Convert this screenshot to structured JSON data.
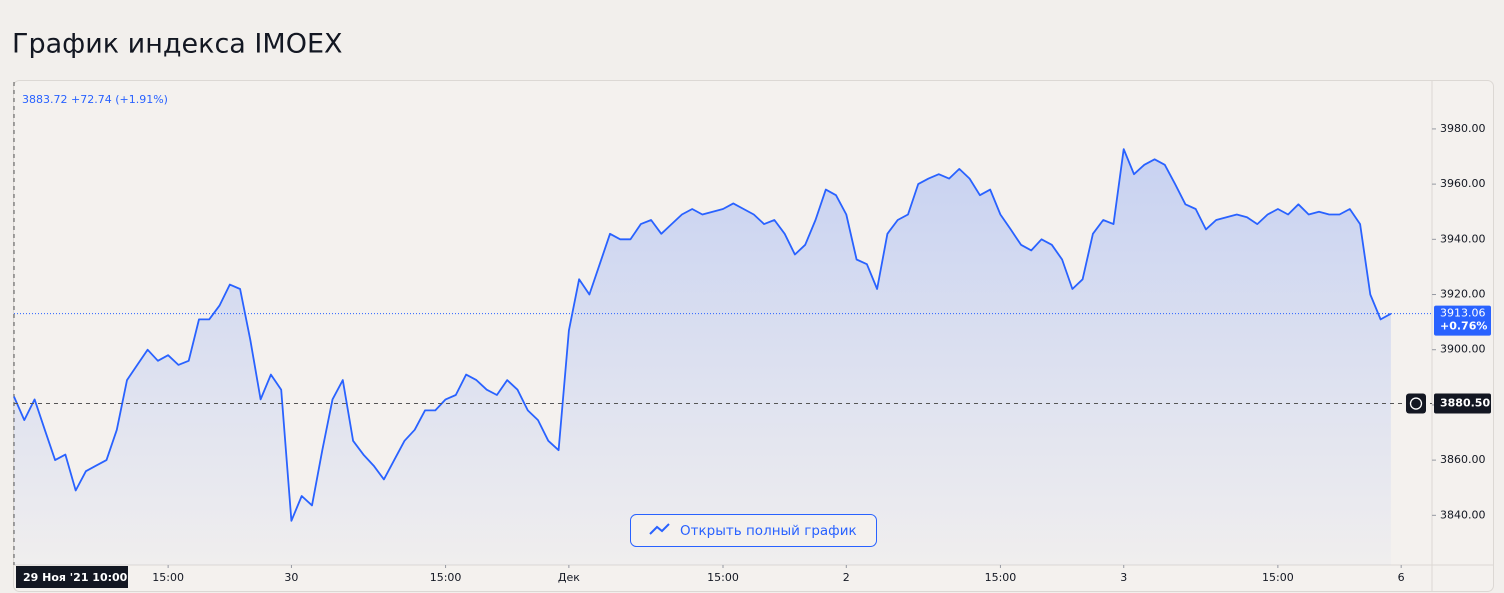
{
  "title": "График индекса IMOEX",
  "chart_data": {
    "type": "line",
    "legend_text": "3883.72  +72.74 (+1.91%)",
    "color": "#2962ff",
    "x": [
      0,
      1,
      2,
      3,
      4,
      5,
      6,
      7,
      8,
      9,
      10,
      11,
      12,
      13,
      14,
      15,
      16,
      17,
      18,
      19,
      20,
      21,
      22,
      23,
      24,
      25,
      26,
      27,
      28,
      29,
      30,
      31,
      32,
      33,
      34,
      35,
      36,
      37,
      38,
      39,
      40,
      41,
      42,
      43,
      44,
      45,
      46,
      47,
      48,
      49,
      50,
      51,
      52,
      53,
      54,
      55,
      56,
      57,
      58,
      59,
      60,
      61,
      62,
      63,
      64,
      65,
      66,
      67,
      68,
      69,
      70,
      71,
      72,
      73,
      74,
      75,
      76,
      77,
      78,
      79,
      80,
      81,
      82,
      83,
      84,
      85,
      86,
      87,
      88,
      89,
      90,
      91,
      92,
      93,
      94,
      95,
      96,
      97,
      98,
      99,
      100,
      101,
      102,
      103,
      104,
      105,
      106,
      107,
      108,
      109,
      110,
      111,
      112,
      113,
      114,
      115,
      116,
      117,
      118,
      119,
      120,
      121,
      122,
      123,
      124,
      125,
      126,
      127,
      128,
      129,
      130,
      131,
      132,
      133,
      134
    ],
    "values": [
      3883,
      3874.5,
      3882,
      3871,
      3860,
      3862,
      3849,
      3856,
      3858,
      3860,
      3871,
      3889,
      3894.5,
      3900,
      3896,
      3898,
      3894.5,
      3896,
      3911,
      3911,
      3916,
      3923.6,
      3922,
      3903.6,
      3882,
      3891,
      3885.5,
      3838,
      3847,
      3843.6,
      3863.6,
      3882,
      3889,
      3867,
      3862,
      3858,
      3853,
      3860,
      3867,
      3871,
      3878,
      3878,
      3882,
      3883.6,
      3891,
      3889,
      3885.5,
      3883.6,
      3889,
      3885.5,
      3878,
      3874.5,
      3867,
      3863.6,
      3907,
      3925.5,
      3920,
      3931,
      3942,
      3940,
      3940,
      3945.5,
      3947,
      3942,
      3945.5,
      3949,
      3951,
      3949,
      3950,
      3951,
      3953,
      3951,
      3949,
      3945.5,
      3947,
      3942,
      3934.5,
      3938,
      3947,
      3958,
      3956,
      3949,
      3932.7,
      3931,
      3922,
      3942,
      3947,
      3949,
      3960,
      3962,
      3963.6,
      3962,
      3965.5,
      3962,
      3956,
      3958,
      3949,
      3943.6,
      3938,
      3936,
      3940,
      3938,
      3932.7,
      3922,
      3925.5,
      3942,
      3947,
      3945.5,
      3972.7,
      3963.6,
      3967,
      3969,
      3967,
      3960,
      3952.7,
      3951,
      3943.6,
      3947,
      3948,
      3949,
      3948,
      3945.5,
      3949,
      3951,
      3949,
      3952.7,
      3949,
      3950,
      3949,
      3949,
      3951,
      3945.5,
      3920,
      3911,
      3913.06
    ],
    "last_change": "+0.76%",
    "prev_close": {
      "value": 3880.5,
      "label": "3880.50"
    },
    "ylim": [
      3822,
      3997
    ],
    "yticks": [
      {
        "value": 3840,
        "label": "3840.00"
      },
      {
        "value": 3860,
        "label": "3860.00"
      },
      {
        "value": 3880,
        "label": "3880.00"
      },
      {
        "value": 3900,
        "label": "3900.00"
      },
      {
        "value": 3920,
        "label": "3920.00"
      },
      {
        "value": 3940,
        "label": "3940.00"
      },
      {
        "value": 3960,
        "label": "3960.00"
      },
      {
        "value": 3980,
        "label": "3980.00"
      }
    ],
    "xlim": [
      0,
      138
    ],
    "xticks": [
      {
        "value": 0,
        "label": "29 Ноя '21   10:00"
      },
      {
        "value": 15,
        "label": "15:00"
      },
      {
        "value": 27,
        "label": "30"
      },
      {
        "value": 42,
        "label": "15:00"
      },
      {
        "value": 54,
        "label": "Дек"
      },
      {
        "value": 69,
        "label": "15:00"
      },
      {
        "value": 81,
        "label": "2"
      },
      {
        "value": 96,
        "label": "15:00"
      },
      {
        "value": 108,
        "label": "3"
      },
      {
        "value": 123,
        "label": "15:00"
      },
      {
        "value": 135,
        "label": "6"
      }
    ]
  },
  "button": "Открыть полный график"
}
